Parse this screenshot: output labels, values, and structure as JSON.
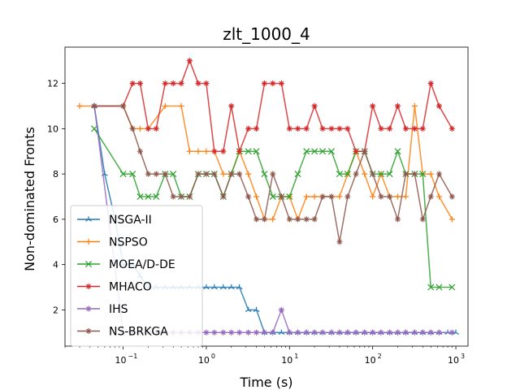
{
  "chart_data": {
    "type": "line",
    "title": "zlt_1000_4",
    "xlabel": "Time (s)",
    "ylabel": "Non-dominated Fronts",
    "x_scale": "log",
    "xlim": [
      0.02,
      1400
    ],
    "ylim": [
      0.4,
      13.6
    ],
    "x_ticks": [
      {
        "value": 0.1,
        "base": "10",
        "exp": "−1"
      },
      {
        "value": 1,
        "base": "10",
        "exp": "0"
      },
      {
        "value": 10,
        "base": "10",
        "exp": "1"
      },
      {
        "value": 100,
        "base": "10",
        "exp": "2"
      },
      {
        "value": 1000,
        "base": "10",
        "exp": "3"
      }
    ],
    "y_ticks": [
      "2",
      "4",
      "6",
      "8",
      "10",
      "12"
    ],
    "grid": false,
    "legend_position": "lower-left",
    "series": [
      {
        "name": "NSGA-II",
        "color": "#1f77b4",
        "marker": "tri",
        "x": [
          0.045,
          0.06,
          0.08,
          0.1,
          0.13,
          0.16,
          0.2,
          0.25,
          0.32,
          0.4,
          0.5,
          0.63,
          0.8,
          1.0,
          1.25,
          1.6,
          2.0,
          2.5,
          3.2,
          4.0,
          5.0,
          6.3,
          8.0,
          10,
          12.6,
          16,
          20,
          25,
          32,
          40,
          50,
          63,
          80,
          100,
          126,
          160,
          200,
          250,
          320,
          400,
          500,
          630,
          800,
          1000
        ],
        "y": [
          11,
          8,
          6,
          4,
          4,
          3.5,
          3,
          3,
          3,
          3,
          3,
          3,
          3,
          3,
          3,
          3,
          3,
          3,
          2,
          2,
          1,
          1,
          1,
          1,
          1,
          1,
          1,
          1,
          1,
          1,
          1,
          1,
          1,
          1,
          1,
          1,
          1,
          1,
          1,
          1,
          1,
          1,
          1,
          1
        ]
      },
      {
        "name": "NSPSO",
        "color": "#ff7f0e",
        "marker": "plus",
        "x": [
          0.03,
          0.045,
          0.1,
          0.13,
          0.16,
          0.2,
          0.32,
          0.5,
          0.63,
          0.8,
          1.0,
          1.25,
          1.6,
          2.0,
          2.5,
          3.2,
          4.0,
          5.0,
          6.3,
          8.0,
          10,
          12.6,
          16,
          20,
          25,
          32,
          40,
          50,
          63,
          80,
          100,
          126,
          160,
          200,
          250,
          320,
          400,
          500,
          630,
          900
        ],
        "y": [
          11,
          11,
          11,
          10,
          10,
          10,
          11,
          11,
          9,
          9,
          9,
          9,
          8,
          8,
          9,
          8,
          7,
          6,
          6,
          7,
          7,
          6,
          7,
          7,
          7,
          7,
          7,
          8,
          9,
          8,
          7,
          8,
          7,
          7,
          7,
          11,
          8,
          8,
          7,
          6
        ]
      },
      {
        "name": "MOEA/D-DE",
        "color": "#2ca02c",
        "marker": "x",
        "x": [
          0.045,
          0.1,
          0.13,
          0.16,
          0.2,
          0.25,
          0.32,
          0.4,
          0.5,
          0.63,
          0.8,
          1.0,
          1.25,
          1.6,
          2.0,
          2.5,
          3.2,
          4.0,
          5.0,
          6.3,
          8.0,
          10,
          12.6,
          16,
          20,
          25,
          32,
          40,
          50,
          63,
          80,
          100,
          126,
          160,
          200,
          250,
          320,
          400,
          500,
          630,
          900
        ],
        "y": [
          10,
          8,
          8,
          7,
          7,
          7,
          8,
          8,
          7,
          7,
          8,
          8,
          8,
          7,
          8,
          9,
          9,
          9,
          8,
          7,
          7,
          7,
          8,
          9,
          9,
          9,
          9,
          8,
          8,
          9,
          9,
          8,
          8,
          8,
          9,
          8,
          8,
          8,
          3,
          3,
          3
        ]
      },
      {
        "name": "MHACO",
        "color": "#d62728",
        "marker": "star",
        "x": [
          0.045,
          0.1,
          0.13,
          0.16,
          0.2,
          0.25,
          0.32,
          0.4,
          0.5,
          0.63,
          0.8,
          1.0,
          1.25,
          1.6,
          2.0,
          2.5,
          3.2,
          4.0,
          5.0,
          6.3,
          8.0,
          10,
          12.6,
          16,
          20,
          25,
          32,
          40,
          50,
          63,
          80,
          100,
          126,
          160,
          200,
          250,
          320,
          400,
          500,
          630,
          900
        ],
        "y": [
          11,
          11,
          12,
          12,
          10,
          10,
          12,
          12,
          12,
          13,
          12,
          12,
          9,
          9,
          11,
          9,
          10,
          10,
          12,
          12,
          12,
          10,
          10,
          10,
          11,
          10,
          10,
          10,
          10,
          9,
          9,
          11,
          10,
          10,
          11,
          10,
          10,
          10,
          12,
          11,
          10
        ]
      },
      {
        "name": "IHS",
        "color": "#9467bd",
        "marker": "star",
        "x": [
          0.045,
          0.1,
          0.13,
          0.16,
          0.2,
          0.25,
          0.32,
          0.4,
          0.5,
          0.63,
          0.8,
          1.0,
          1.25,
          1.6,
          2.0,
          2.5,
          3.2,
          4.0,
          5.0,
          6.3,
          8.0,
          10,
          12.6,
          16,
          20,
          25,
          32,
          40,
          50,
          63,
          80,
          100,
          126,
          160,
          200,
          250,
          320,
          400,
          500,
          630,
          900
        ],
        "y": [
          11,
          1,
          1,
          1,
          1,
          1,
          1,
          1,
          1,
          1,
          1,
          1,
          1,
          1,
          1,
          1,
          1,
          1,
          1,
          1,
          2,
          1,
          1,
          1,
          1,
          1,
          1,
          1,
          1,
          1,
          1,
          1,
          1,
          1,
          1,
          1,
          1,
          1,
          1,
          1,
          1
        ]
      },
      {
        "name": "NS-BRKGA",
        "color": "#8c564b",
        "marker": "star",
        "x": [
          0.045,
          0.1,
          0.13,
          0.16,
          0.2,
          0.25,
          0.32,
          0.4,
          0.5,
          0.63,
          0.8,
          1.0,
          1.25,
          1.6,
          2.0,
          2.5,
          3.2,
          4.0,
          5.0,
          6.3,
          8.0,
          10,
          12.6,
          16,
          20,
          25,
          32,
          40,
          50,
          63,
          80,
          100,
          126,
          160,
          200,
          250,
          320,
          400,
          500,
          630,
          900
        ],
        "y": [
          11,
          11,
          10,
          9,
          8,
          8,
          8,
          7,
          7,
          7,
          8,
          8,
          8,
          7,
          8,
          8,
          7,
          6,
          6,
          8,
          7,
          6,
          6,
          6,
          6,
          7,
          7,
          5,
          7,
          8,
          9,
          8,
          7,
          7,
          6,
          8,
          8,
          6,
          7,
          8,
          7
        ]
      }
    ]
  }
}
